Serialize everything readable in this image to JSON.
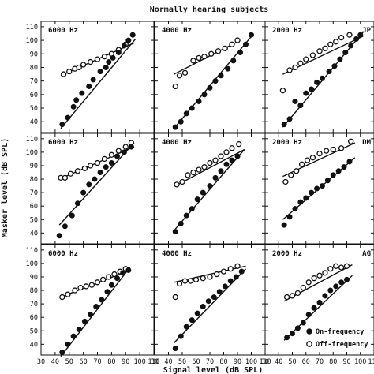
{
  "figure_title": "Normally hearing subjects",
  "ylabel": "Masker level (dB SPL)",
  "xlabel": "Signal level (dB SPL)",
  "x_ticks": [
    30,
    40,
    50,
    60,
    70,
    80,
    90,
    100,
    110
  ],
  "y_ticks": [
    40,
    50,
    60,
    70,
    80,
    90,
    100,
    110
  ],
  "legend": {
    "on_label": "On-frequency",
    "off_label": "Off-frequency"
  },
  "chart_data": {
    "type": "scatter",
    "xlim": [
      30,
      110
    ],
    "ylim": [
      32,
      114
    ],
    "grid": false,
    "legend_position": "bottom-right",
    "panels": [
      {
        "row": 0,
        "col": 0,
        "freq": "6000 Hz",
        "subject": "",
        "on": [
          [
            45,
            38
          ],
          [
            49,
            43
          ],
          [
            53,
            51
          ],
          [
            55,
            56
          ],
          [
            59,
            61
          ],
          [
            64,
            66
          ],
          [
            67,
            71
          ],
          [
            72,
            77
          ],
          [
            76,
            80
          ],
          [
            78,
            84
          ],
          [
            81,
            87
          ],
          [
            85,
            91
          ],
          [
            89,
            96
          ],
          [
            92,
            100
          ],
          [
            95,
            104
          ]
        ],
        "off": [
          [
            46,
            75
          ],
          [
            50,
            77
          ],
          [
            54,
            79
          ],
          [
            57,
            80
          ],
          [
            60,
            82
          ],
          [
            65,
            84
          ],
          [
            70,
            86
          ],
          [
            75,
            88
          ],
          [
            80,
            90
          ],
          [
            85,
            93
          ],
          [
            90,
            97
          ]
        ],
        "on_fit": [
          [
            44,
            35
          ],
          [
            97,
            101
          ]
        ],
        "off_fit": [
          [
            44,
            74
          ],
          [
            96,
            98
          ]
        ]
      },
      {
        "row": 0,
        "col": 1,
        "freq": "4000 Hz",
        "subject": "",
        "on": [
          [
            45,
            36
          ],
          [
            49,
            40
          ],
          [
            53,
            46
          ],
          [
            57,
            50
          ],
          [
            62,
            55
          ],
          [
            66,
            60
          ],
          [
            70,
            65
          ],
          [
            74,
            70
          ],
          [
            78,
            74
          ],
          [
            83,
            79
          ],
          [
            87,
            85
          ],
          [
            92,
            91
          ],
          [
            96,
            97
          ],
          [
            100,
            104
          ]
        ],
        "off": [
          [
            45,
            66
          ],
          [
            48,
            74
          ],
          [
            52,
            76
          ],
          [
            58,
            85
          ],
          [
            62,
            87
          ],
          [
            66,
            88
          ],
          [
            71,
            90
          ],
          [
            76,
            92
          ],
          [
            81,
            94
          ],
          [
            86,
            97
          ],
          [
            90,
            100
          ]
        ],
        "on_fit": [
          [
            44,
            35
          ],
          [
            101,
            104
          ]
        ],
        "off_fit": [
          [
            44,
            75
          ],
          [
            92,
            100
          ]
        ]
      },
      {
        "row": 0,
        "col": 2,
        "freq": "2000 Hz",
        "subject": "JP",
        "on": [
          [
            44,
            38
          ],
          [
            48,
            42
          ],
          [
            52,
            55
          ],
          [
            56,
            52
          ],
          [
            60,
            61
          ],
          [
            64,
            64
          ],
          [
            68,
            69
          ],
          [
            72,
            72
          ],
          [
            77,
            77
          ],
          [
            81,
            81
          ],
          [
            85,
            86
          ],
          [
            89,
            91
          ],
          [
            93,
            96
          ],
          [
            97,
            101
          ],
          [
            100,
            104
          ]
        ],
        "off": [
          [
            43,
            63
          ],
          [
            48,
            78
          ],
          [
            52,
            80
          ],
          [
            56,
            83
          ],
          [
            60,
            86
          ],
          [
            65,
            89
          ],
          [
            70,
            92
          ],
          [
            74,
            94
          ],
          [
            78,
            97
          ],
          [
            82,
            99
          ],
          [
            86,
            102
          ],
          [
            92,
            104
          ]
        ],
        "on_fit": [
          [
            43,
            36
          ],
          [
            102,
            106
          ]
        ],
        "off_fit": [
          [
            43,
            75
          ],
          [
            102,
            103
          ]
        ]
      },
      {
        "row": 1,
        "col": 0,
        "freq": "6000 Hz",
        "subject": "",
        "on": [
          [
            43,
            38
          ],
          [
            47,
            45
          ],
          [
            52,
            53
          ],
          [
            56,
            62
          ],
          [
            60,
            70
          ],
          [
            64,
            76
          ],
          [
            68,
            80
          ],
          [
            72,
            85
          ],
          [
            76,
            89
          ],
          [
            80,
            92
          ],
          [
            84,
            97
          ],
          [
            89,
            100
          ],
          [
            94,
            104
          ]
        ],
        "off": [
          [
            44,
            81
          ],
          [
            47,
            81
          ],
          [
            51,
            84
          ],
          [
            56,
            86
          ],
          [
            61,
            88
          ],
          [
            65,
            90
          ],
          [
            70,
            92
          ],
          [
            75,
            95
          ],
          [
            80,
            98
          ],
          [
            85,
            101
          ],
          [
            90,
            104
          ],
          [
            94,
            107
          ]
        ],
        "on_fit": [
          [
            43,
            46
          ],
          [
            96,
            107
          ]
        ],
        "off_fit": [
          [
            43,
            80
          ],
          [
            96,
            104
          ]
        ]
      },
      {
        "row": 1,
        "col": 1,
        "freq": "4000 Hz",
        "subject": "",
        "on": [
          [
            45,
            41
          ],
          [
            49,
            47
          ],
          [
            53,
            53
          ],
          [
            57,
            58
          ],
          [
            61,
            65
          ],
          [
            65,
            70
          ],
          [
            70,
            75
          ],
          [
            74,
            81
          ],
          [
            78,
            86
          ],
          [
            82,
            91
          ],
          [
            86,
            94
          ],
          [
            90,
            97
          ]
        ],
        "off": [
          [
            46,
            76
          ],
          [
            50,
            78
          ],
          [
            54,
            83
          ],
          [
            58,
            85
          ],
          [
            62,
            87
          ],
          [
            66,
            89
          ],
          [
            70,
            92
          ],
          [
            74,
            94
          ],
          [
            78,
            97
          ],
          [
            82,
            100
          ],
          [
            86,
            103
          ],
          [
            91,
            106
          ]
        ],
        "on_fit": [
          [
            45,
            43
          ],
          [
            95,
            102
          ]
        ],
        "off_fit": [
          [
            45,
            75
          ],
          [
            95,
            102
          ]
        ]
      },
      {
        "row": 1,
        "col": 2,
        "freq": "2000 Hz",
        "subject": "DM",
        "on": [
          [
            44,
            46
          ],
          [
            48,
            52
          ],
          [
            52,
            58
          ],
          [
            56,
            63
          ],
          [
            60,
            66
          ],
          [
            64,
            70
          ],
          [
            68,
            73
          ],
          [
            72,
            75
          ],
          [
            76,
            79
          ],
          [
            80,
            83
          ],
          [
            84,
            86
          ],
          [
            88,
            89
          ],
          [
            92,
            93
          ]
        ],
        "off": [
          [
            45,
            78
          ],
          [
            49,
            83
          ],
          [
            53,
            86
          ],
          [
            57,
            91
          ],
          [
            61,
            94
          ],
          [
            65,
            96
          ],
          [
            70,
            99
          ],
          [
            75,
            101
          ],
          [
            80,
            102
          ],
          [
            86,
            103
          ],
          [
            93,
            108
          ]
        ],
        "on_fit": [
          [
            43,
            50
          ],
          [
            96,
            96
          ]
        ],
        "off_fit": [
          [
            43,
            82
          ],
          [
            96,
            107
          ]
        ]
      },
      {
        "row": 2,
        "col": 0,
        "freq": "6000 Hz",
        "subject": "",
        "on": [
          [
            45,
            34
          ],
          [
            49,
            40
          ],
          [
            53,
            46
          ],
          [
            57,
            51
          ],
          [
            61,
            57
          ],
          [
            65,
            62
          ],
          [
            69,
            68
          ],
          [
            73,
            73
          ],
          [
            77,
            79
          ],
          [
            80,
            84
          ],
          [
            84,
            89
          ],
          [
            88,
            93
          ],
          [
            92,
            95
          ]
        ],
        "off": [
          [
            45,
            75
          ],
          [
            49,
            77
          ],
          [
            54,
            80
          ],
          [
            58,
            82
          ],
          [
            62,
            83
          ],
          [
            66,
            84
          ],
          [
            70,
            86
          ],
          [
            74,
            88
          ],
          [
            78,
            90
          ],
          [
            82,
            92
          ],
          [
            86,
            94
          ],
          [
            90,
            96
          ]
        ],
        "on_fit": [
          [
            44,
            31
          ],
          [
            93,
            97
          ]
        ],
        "off_fit": [
          [
            44,
            75
          ],
          [
            93,
            95
          ]
        ]
      },
      {
        "row": 2,
        "col": 1,
        "freq": "4000 Hz",
        "subject": "",
        "on": [
          [
            45,
            37
          ],
          [
            49,
            46
          ],
          [
            53,
            53
          ],
          [
            57,
            58
          ],
          [
            61,
            63
          ],
          [
            65,
            68
          ],
          [
            69,
            72
          ],
          [
            73,
            75
          ],
          [
            77,
            79
          ],
          [
            81,
            83
          ],
          [
            85,
            87
          ],
          [
            89,
            90
          ],
          [
            93,
            94
          ]
        ],
        "off": [
          [
            45,
            75
          ],
          [
            48,
            85
          ],
          [
            52,
            87
          ],
          [
            56,
            87
          ],
          [
            60,
            88
          ],
          [
            65,
            89
          ],
          [
            70,
            90
          ],
          [
            75,
            92
          ],
          [
            80,
            94
          ],
          [
            85,
            96
          ],
          [
            90,
            98
          ]
        ],
        "on_fit": [
          [
            44,
            41
          ],
          [
            96,
            96
          ]
        ],
        "off_fit": [
          [
            44,
            86
          ],
          [
            96,
            98
          ]
        ]
      },
      {
        "row": 2,
        "col": 2,
        "freq": "2000 Hz",
        "subject": "AG",
        "on": [
          [
            46,
            45
          ],
          [
            50,
            48
          ],
          [
            54,
            52
          ],
          [
            58,
            56
          ],
          [
            62,
            62
          ],
          [
            66,
            67
          ],
          [
            70,
            71
          ],
          [
            74,
            76
          ],
          [
            78,
            80
          ],
          [
            82,
            83
          ],
          [
            86,
            86
          ],
          [
            90,
            88
          ]
        ],
        "off": [
          [
            46,
            75
          ],
          [
            50,
            76
          ],
          [
            54,
            78
          ],
          [
            58,
            82
          ],
          [
            62,
            86
          ],
          [
            66,
            89
          ],
          [
            70,
            91
          ],
          [
            74,
            93
          ],
          [
            78,
            96
          ],
          [
            82,
            98
          ],
          [
            86,
            97
          ],
          [
            90,
            98
          ]
        ],
        "on_fit": [
          [
            44,
            43
          ],
          [
            94,
            91
          ]
        ],
        "off_fit": [
          [
            44,
            72
          ],
          [
            94,
            99
          ]
        ]
      }
    ]
  }
}
